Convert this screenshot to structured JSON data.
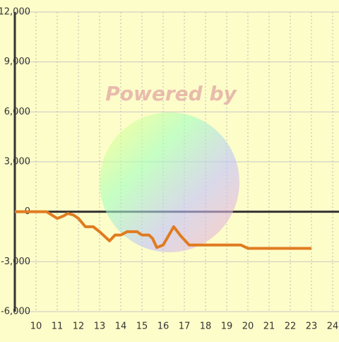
{
  "chart_data": {
    "type": "line",
    "watermark": "Powered by",
    "x": [
      9,
      10.5,
      11,
      11.3,
      11.5,
      11.77,
      12,
      12.33,
      12.7,
      13,
      13.47,
      13.73,
      14,
      14.3,
      14.77,
      15,
      15.33,
      15.5,
      15.7,
      16,
      16.5,
      16.83,
      17.23,
      19.67,
      20,
      23
    ],
    "series": [
      {
        "color": "#e07b20",
        "values": [
          0,
          0,
          -400,
          -250,
          -100,
          -200,
          -400,
          -900,
          -900,
          -1200,
          -1750,
          -1400,
          -1400,
          -1200,
          -1200,
          -1400,
          -1400,
          -1600,
          -2150,
          -2000,
          -900,
          -1450,
          -2000,
          -2000,
          -2200,
          -2200
        ]
      }
    ],
    "xlim": [
      9,
      24.3
    ],
    "ylim": [
      -6000,
      12000
    ],
    "xticks": [
      10,
      11,
      12,
      13,
      14,
      15,
      16,
      17,
      18,
      19,
      20,
      21,
      22,
      23,
      24
    ],
    "yticks": [
      {
        "value": -6000,
        "label": "-6,000"
      },
      {
        "value": -3000,
        "label": "-3,000"
      },
      0,
      {
        "value": 3000,
        "label": "3,000"
      },
      {
        "value": 6000,
        "label": "6,000"
      },
      {
        "value": 9000,
        "label": "9,000"
      },
      {
        "value": 12000,
        "label": "12,000"
      }
    ],
    "grid": true
  }
}
